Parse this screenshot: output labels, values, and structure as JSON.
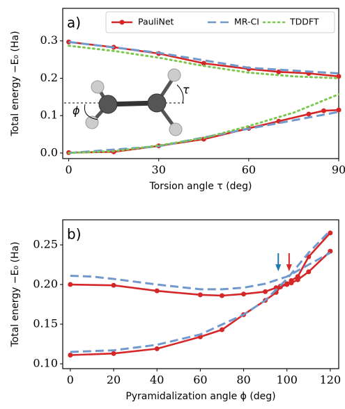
{
  "chart_data": [
    {
      "type": "line",
      "label": "a)",
      "x_label": "Torsion angle τ (deg)",
      "y_label": "Total energy −E₀ (Ha)",
      "xlim": [
        -2,
        90
      ],
      "ylim": [
        -0.015,
        0.387
      ],
      "xticks": [
        0,
        30,
        60,
        90
      ],
      "yticks": [
        {
          "value": 0,
          "label": "0.0"
        },
        0.1,
        0.2,
        0.3
      ],
      "legend": "upper right",
      "annotations": [
        "τ",
        "ϕ"
      ],
      "series": [
        {
          "name": "PauliNet",
          "color": "#d62728",
          "linestyle": "solid",
          "marker": true,
          "curves": [
            {
              "x": [
                0,
                15,
                30,
                45,
                60,
                70,
                80,
                90
              ],
              "values": [
                0.297,
                0.283,
                0.266,
                0.24,
                0.225,
                0.217,
                0.213,
                0.205
              ]
            },
            {
              "x": [
                0,
                15,
                30,
                45,
                60,
                70,
                80,
                85,
                90
              ],
              "values": [
                0.001,
                0.003,
                0.019,
                0.037,
                0.066,
                0.085,
                0.104,
                0.113,
                0.115
              ]
            }
          ]
        },
        {
          "name": "MR-CI",
          "color": "#7199cd",
          "linestyle": "dashed",
          "marker": false,
          "curves": [
            {
              "x": [
                0,
                30,
                60,
                90
              ],
              "values": [
                0.297,
                0.268,
                0.228,
                0.213
              ]
            },
            {
              "x": [
                0,
                30,
                60,
                90
              ],
              "values": [
                0.0,
                0.018,
                0.065,
                0.11
              ]
            }
          ]
        },
        {
          "name": "TDDFT",
          "color": "#7bc84e",
          "linestyle": "dotted",
          "marker": false,
          "curves": [
            {
              "x": [
                0,
                15,
                30,
                45,
                60,
                75,
                90
              ],
              "values": [
                0.287,
                0.273,
                0.255,
                0.233,
                0.215,
                0.205,
                0.2
              ]
            },
            {
              "x": [
                0,
                15,
                30,
                45,
                60,
                75,
                90
              ],
              "values": [
                0.0,
                0.005,
                0.02,
                0.04,
                0.072,
                0.108,
                0.157
              ]
            }
          ]
        }
      ]
    },
    {
      "type": "line",
      "label": "b)",
      "x_label": "Pyramidalization angle ϕ (deg)",
      "y_label": "Total energy −E₀ (Ha)",
      "xlim": [
        -3.5,
        123.9
      ],
      "ylim": [
        0.0939,
        0.2816
      ],
      "xticks": [
        0,
        20,
        40,
        60,
        80,
        100,
        120
      ],
      "yticks": [
        {
          "value": 0.1,
          "label": "0.10"
        },
        0.15,
        {
          "value": 0.2,
          "label": "0.20"
        },
        0.25
      ],
      "arrows": [
        {
          "x": 96,
          "color": "#1f77b4"
        },
        {
          "x": 101,
          "color": "#d62728"
        }
      ],
      "series": [
        {
          "name": "PauliNet",
          "color": "#d62728",
          "linestyle": "solid",
          "marker": true,
          "curves": [
            {
              "x": [
                0,
                20,
                40,
                60,
                70,
                80,
                90,
                95,
                97,
                100,
                102,
                105,
                110,
                120
              ],
              "values": [
                0.2,
                0.199,
                0.192,
                0.187,
                0.186,
                0.188,
                0.191,
                0.196,
                0.198,
                0.201,
                0.202,
                0.206,
                0.216,
                0.242
              ]
            },
            {
              "x": [
                0,
                20,
                40,
                60,
                70,
                80,
                90,
                95,
                97,
                100,
                102,
                105,
                110,
                120
              ],
              "values": [
                0.111,
                0.113,
                0.119,
                0.134,
                0.143,
                0.162,
                0.18,
                0.19,
                0.197,
                0.2,
                0.205,
                0.21,
                0.235,
                0.265
              ]
            }
          ]
        },
        {
          "name": "MR-CI",
          "color": "#7199cd",
          "linestyle": "dashed",
          "marker": false,
          "curves": [
            {
              "x": [
                0,
                10,
                20,
                40,
                60,
                70,
                80,
                90,
                100,
                110,
                120
              ],
              "values": [
                0.211,
                0.21,
                0.207,
                0.2,
                0.194,
                0.194,
                0.196,
                0.201,
                0.21,
                0.225,
                0.24
              ]
            },
            {
              "x": [
                0,
                20,
                40,
                60,
                80,
                90,
                100,
                110,
                120
              ],
              "values": [
                0.115,
                0.117,
                0.124,
                0.137,
                0.162,
                0.18,
                0.207,
                0.24,
                0.268
              ]
            }
          ]
        }
      ]
    }
  ]
}
